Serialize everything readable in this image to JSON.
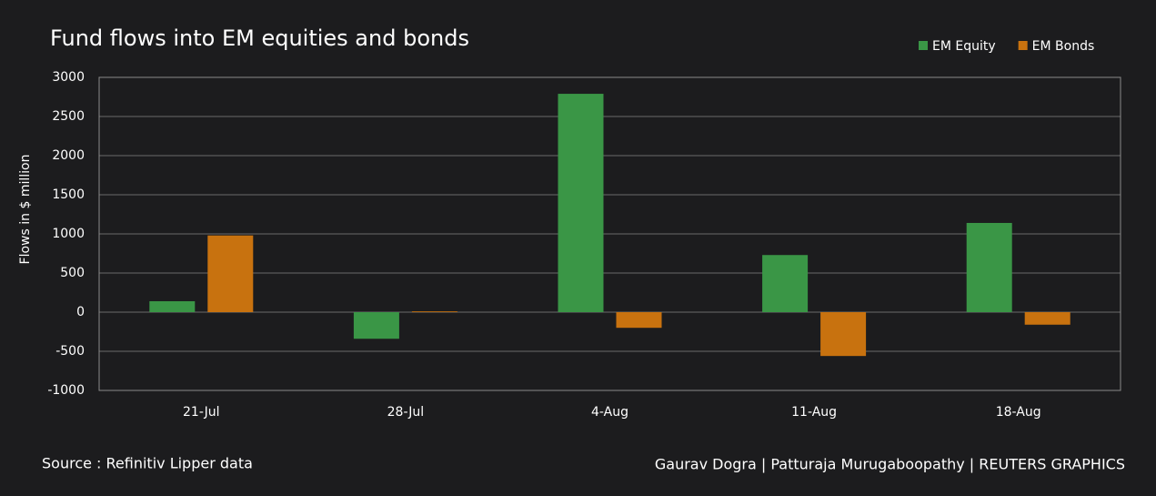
{
  "chart_data": {
    "type": "bar",
    "title": "Fund flows into EM equities and bonds",
    "y_label": "Flows in $ million",
    "categories": [
      "21-Jul",
      "28-Jul",
      "4-Aug",
      "11-Aug",
      "18-Aug"
    ],
    "series": [
      {
        "name": "EM Equity",
        "color": "#3a9646",
        "values": [
          140,
          -340,
          2790,
          730,
          1140
        ]
      },
      {
        "name": "EM Bonds",
        "color": "#c8720f",
        "values": [
          980,
          10,
          -200,
          -560,
          -160
        ]
      }
    ],
    "ylim": [
      -1000,
      3000
    ],
    "yticks": [
      -1000,
      -500,
      0,
      500,
      1000,
      1500,
      2000,
      2500,
      3000
    ],
    "grid": true,
    "legend": "top-right",
    "source": "Source : Refinitiv Lipper data",
    "credit": "Gaurav Dogra | Patturaja Murugaboopathy | REUTERS GRAPHICS"
  }
}
